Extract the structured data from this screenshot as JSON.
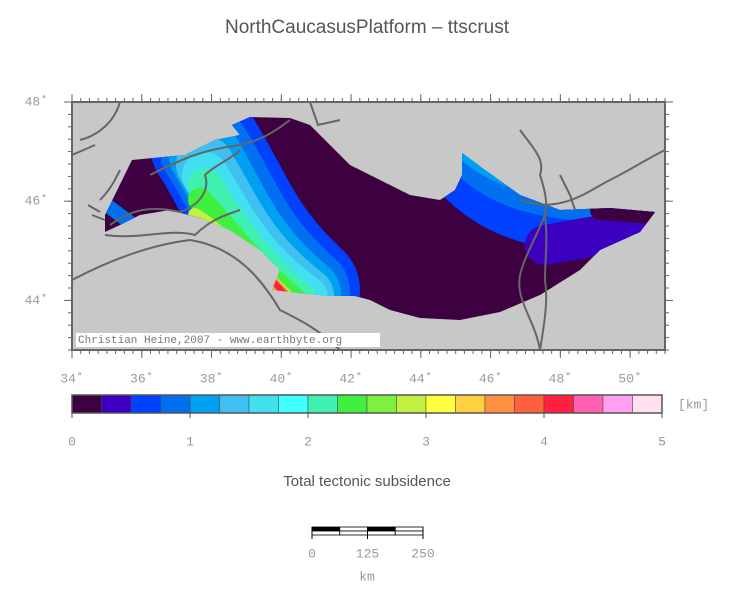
{
  "title": "NorthCaucasusPlatform – ttscrust",
  "map": {
    "xlim": [
      34,
      51
    ],
    "ylim": [
      43,
      48
    ],
    "xticks": [
      {
        "value": 34,
        "label": "34˚"
      },
      {
        "value": 36,
        "label": "36˚"
      },
      {
        "value": 38,
        "label": "38˚"
      },
      {
        "value": 40,
        "label": "40˚"
      },
      {
        "value": 42,
        "label": "42˚"
      },
      {
        "value": 44,
        "label": "44˚"
      },
      {
        "value": 46,
        "label": "46˚"
      },
      {
        "value": 48,
        "label": "48˚"
      },
      {
        "value": 50,
        "label": "50˚"
      }
    ],
    "yticks": [
      {
        "value": 48,
        "label": "48˚"
      },
      {
        "value": 46,
        "label": "46˚"
      },
      {
        "value": 44,
        "label": "44˚"
      }
    ],
    "credit": "Christian Heine,2007 - www.earthbyte.org"
  },
  "colorbar": {
    "lim": [
      0,
      5
    ],
    "ticks": [
      0,
      1,
      2,
      3,
      4,
      5
    ],
    "unit": "[km]",
    "label": "Total tectonic subsidence",
    "colors": [
      "#3d0041",
      "#3d00c0",
      "#0040ff",
      "#0070f0",
      "#00a0f0",
      "#40c0f0",
      "#40e0f0",
      "#40ffff",
      "#40f0b0",
      "#40f040",
      "#80f040",
      "#c0f040",
      "#ffff40",
      "#ffd040",
      "#ff9040",
      "#ff6040",
      "#ff2040",
      "#ff60b0",
      "#ffa0f0",
      "#ffe0f0"
    ]
  },
  "scale_bar": {
    "lim": [
      0,
      250
    ],
    "ticks": [
      0,
      125,
      250
    ],
    "unit": "km"
  }
}
